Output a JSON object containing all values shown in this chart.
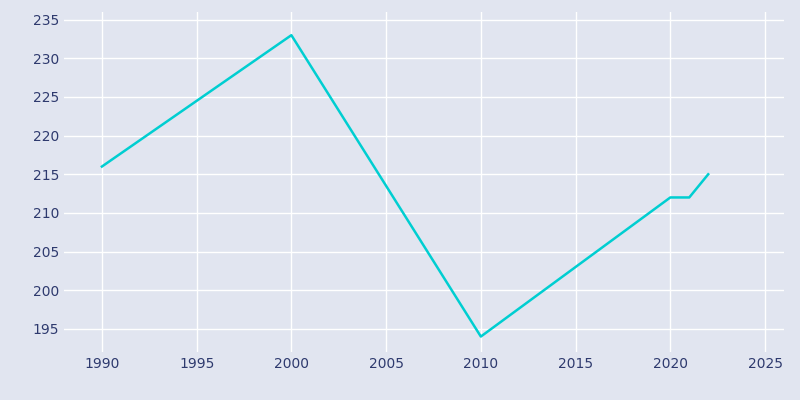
{
  "years": [
    1990,
    2000,
    2010,
    2020,
    2021,
    2022
  ],
  "population": [
    216,
    233,
    194,
    212,
    212,
    215
  ],
  "line_color": "#00CED1",
  "axes_face_color": "#E1E5F0",
  "figure_face_color": "#E1E5F0",
  "grid_color": "#FFFFFF",
  "tick_color": "#2E3A6E",
  "xlim": [
    1988,
    2026
  ],
  "ylim": [
    192,
    236
  ],
  "xticks": [
    1990,
    1995,
    2000,
    2005,
    2010,
    2015,
    2020,
    2025
  ],
  "yticks": [
    195,
    200,
    205,
    210,
    215,
    220,
    225,
    230,
    235
  ],
  "line_width": 1.8
}
